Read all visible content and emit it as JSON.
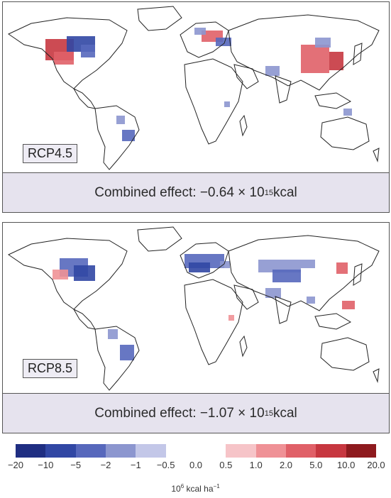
{
  "panels": [
    {
      "scenario": "RCP4.5",
      "caption_prefix": "Combined effect: ",
      "caption_value": "−0.64 × 10",
      "caption_exp": "15",
      "caption_unit": " kcal"
    },
    {
      "scenario": "RCP8.5",
      "caption_prefix": "Combined effect: ",
      "caption_value": "−1.07 × 10",
      "caption_exp": "15",
      "caption_unit": " kcal"
    }
  ],
  "legend": {
    "ticks": [
      "−20",
      "−10",
      "−5",
      "−2",
      "−1",
      "−0.5",
      "0.0",
      "0.5",
      "1.0",
      "2.0",
      "5.0",
      "10.0",
      "20.0"
    ],
    "colors": [
      "#1f2e82",
      "#3147a4",
      "#5768bc",
      "#8c96cf",
      "#c3c7e8",
      "#ffffff",
      "#ffffff",
      "#f6c4c8",
      "#ef9196",
      "#e06068",
      "#c73740",
      "#8e1a1e"
    ],
    "unit_base": "10",
    "unit_exp": "6",
    "unit_rest": " kcal ha",
    "unit_exp2": "−1"
  },
  "colors": {
    "land_outline": "#222222",
    "panel_bg": "#e6e3ee"
  }
}
